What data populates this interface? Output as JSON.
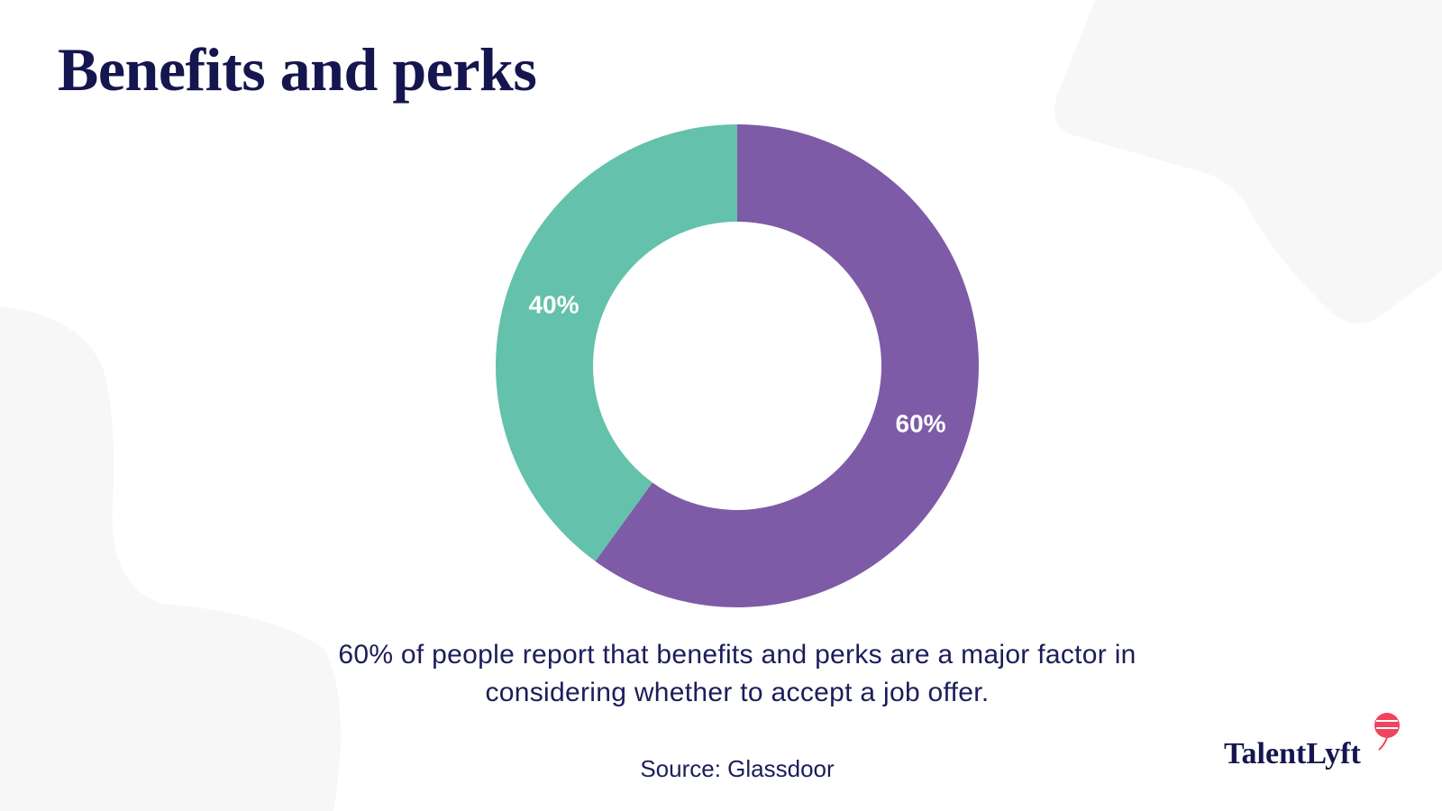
{
  "chart_data": {
    "type": "donut",
    "title": "Benefits and perks",
    "values": [
      60,
      40
    ],
    "value_labels": [
      "60%",
      "40%"
    ],
    "colors": [
      "#7e5ba6",
      "#64c1ab"
    ],
    "caption": "60% of people report that benefits and perks are a major factor in considering whether to accept a job offer.",
    "source": "Source: Glassdoor"
  },
  "brand": "TalentLyft"
}
